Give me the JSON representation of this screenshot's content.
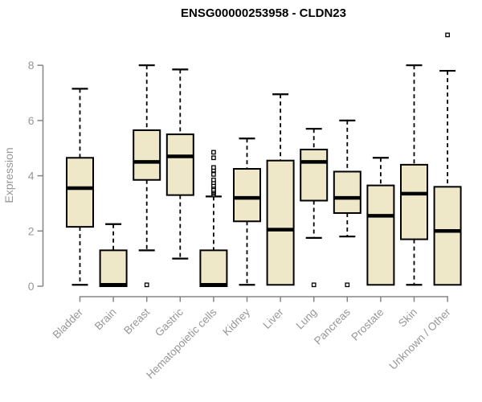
{
  "page": {
    "background": "#FFFFFF"
  },
  "chart_data": {
    "type": "boxplot",
    "title": "ENSG00000253958 - CLDN23",
    "xlabel": "",
    "ylabel": "Expression",
    "yticks": [
      0,
      2,
      4,
      6,
      8
    ],
    "ylim": [
      0,
      9.3
    ],
    "grid": false,
    "legend": "none",
    "categories": [
      "Bladder",
      "Brain",
      "Breast",
      "Gastric",
      "Hematopoietic cells",
      "Kidney",
      "Liver",
      "Lung",
      "Pancreas",
      "Prostate",
      "Skin",
      "Unknown / Other"
    ],
    "boxes": [
      {
        "category": "Bladder",
        "min": 0.05,
        "q1": 2.15,
        "median": 3.55,
        "q3": 4.65,
        "max": 7.15,
        "outliers": []
      },
      {
        "category": "Brain",
        "min": 0,
        "q1": 0,
        "median": 0.05,
        "q3": 1.3,
        "max": 2.25,
        "outliers": []
      },
      {
        "category": "Breast",
        "min": 1.3,
        "q1": 3.85,
        "median": 4.5,
        "q3": 5.65,
        "max": 8.0,
        "outliers": [
          0.05
        ]
      },
      {
        "category": "Gastric",
        "min": 1.0,
        "q1": 3.3,
        "median": 4.7,
        "q3": 5.5,
        "max": 7.85,
        "outliers": []
      },
      {
        "category": "Hematopoietic cells",
        "min": 0,
        "q1": 0,
        "median": 0.05,
        "q3": 1.3,
        "max": 3.25,
        "outliers": [
          3.3,
          3.35,
          3.4,
          3.45,
          3.5,
          3.6,
          3.65,
          3.75,
          3.85,
          4.05,
          4.2,
          4.3,
          4.65,
          4.85
        ]
      },
      {
        "category": "Kidney",
        "min": 0.05,
        "q1": 2.35,
        "median": 3.2,
        "q3": 4.25,
        "max": 5.35,
        "outliers": []
      },
      {
        "category": "Liver",
        "min": 0.05,
        "q1": 0.05,
        "median": 2.05,
        "q3": 4.55,
        "max": 6.95,
        "outliers": []
      },
      {
        "category": "Lung",
        "min": 1.75,
        "q1": 3.1,
        "median": 4.5,
        "q3": 4.95,
        "max": 5.7,
        "outliers": [
          0.05
        ]
      },
      {
        "category": "Pancreas",
        "min": 1.8,
        "q1": 2.65,
        "median": 3.2,
        "q3": 4.15,
        "max": 6.0,
        "outliers": [
          0.05
        ]
      },
      {
        "category": "Prostate",
        "min": 0.05,
        "q1": 0.05,
        "median": 2.55,
        "q3": 3.65,
        "max": 4.65,
        "outliers": []
      },
      {
        "category": "Skin",
        "min": 0.05,
        "q1": 1.7,
        "median": 3.35,
        "q3": 4.4,
        "max": 8.0,
        "outliers": []
      },
      {
        "category": "Unknown / Other",
        "min": 0.05,
        "q1": 0.05,
        "median": 2.0,
        "q3": 3.6,
        "max": 7.8,
        "outliers": [
          9.1
        ]
      }
    ]
  },
  "colors": {
    "box_fill": "#EEE8C8",
    "box_border": "#000000",
    "median": "#000000",
    "whisker": "#000000",
    "outlier_fill": "#FFFFFF",
    "axis_line": "#858585",
    "axis_text": "#979797",
    "title_text": "#000000",
    "background": "#FFFFFF"
  }
}
